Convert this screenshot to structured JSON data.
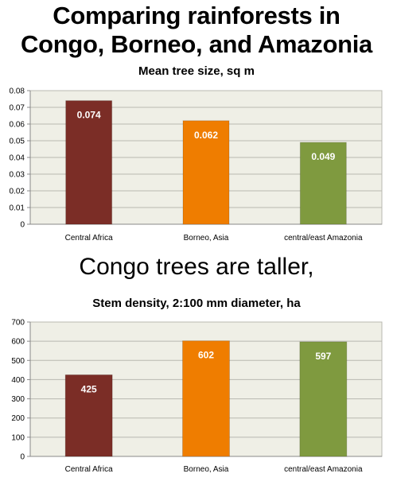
{
  "heading": {
    "line1": "Comparing rainforests in",
    "line2": "Congo, Borneo, and Amazonia"
  },
  "caption": "Congo trees are taller,",
  "chart_data": [
    {
      "type": "bar",
      "title": "Mean tree size, sq m",
      "categories": [
        "Central Africa",
        "Borneo, Asia",
        "central/east Amazonia"
      ],
      "values": [
        0.074,
        0.062,
        0.049
      ],
      "value_labels": [
        "0.074",
        "0.062",
        "0.049"
      ],
      "colors": [
        "#7b2d26",
        "#ef7d00",
        "#7f9a3f"
      ],
      "ylim": [
        0,
        0.08
      ],
      "yticks": [
        0,
        0.01,
        0.02,
        0.03,
        0.04,
        0.05,
        0.06,
        0.07,
        0.08
      ],
      "ytick_labels": [
        "0",
        "0.01",
        "0.02",
        "0.03",
        "0.04",
        "0.05",
        "0.06",
        "0.07",
        "0.08"
      ],
      "grid": true,
      "background": "#efefe6",
      "xlabel": "",
      "ylabel": ""
    },
    {
      "type": "bar",
      "title": "Stem density, 2:100 mm diameter, ha",
      "categories": [
        "Central Africa",
        "Borneo, Asia",
        "central/east Amazonia"
      ],
      "values": [
        425,
        602,
        597
      ],
      "value_labels": [
        "425",
        "602",
        "597"
      ],
      "colors": [
        "#7b2d26",
        "#ef7d00",
        "#7f9a3f"
      ],
      "ylim": [
        0,
        700
      ],
      "yticks": [
        0,
        100,
        200,
        300,
        400,
        500,
        600,
        700
      ],
      "ytick_labels": [
        "0",
        "100",
        "200",
        "300",
        "400",
        "500",
        "600",
        "700"
      ],
      "grid": true,
      "background": "#efefe6",
      "xlabel": "",
      "ylabel": ""
    }
  ]
}
